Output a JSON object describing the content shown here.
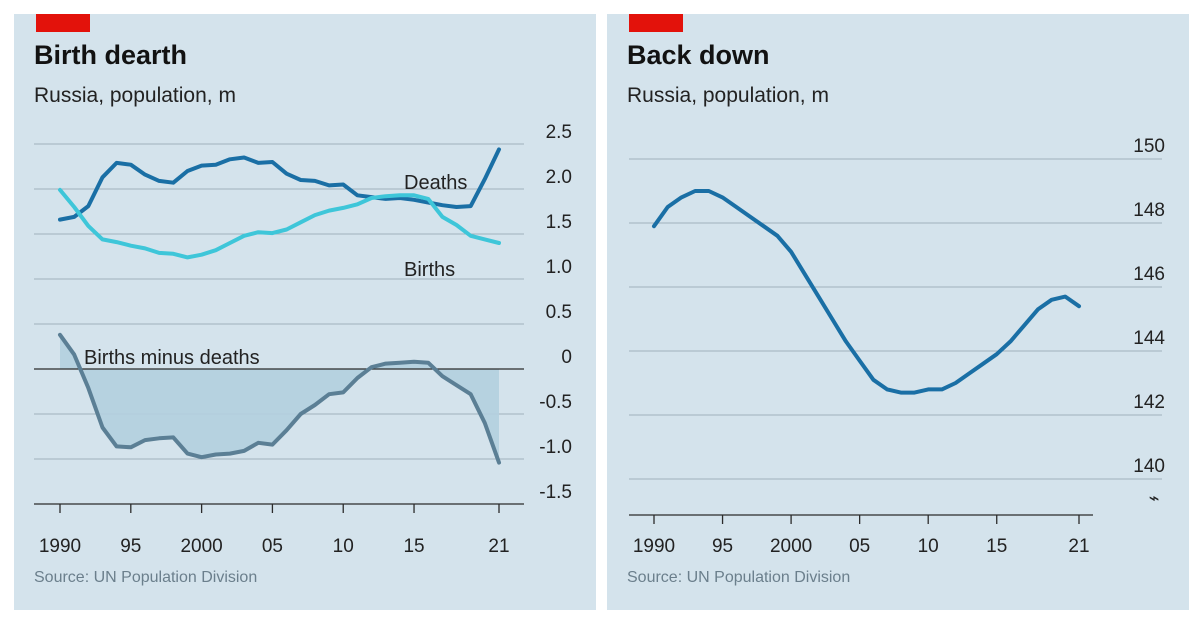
{
  "left": {
    "title": "Birth dearth",
    "subtitle": "Russia, population, m",
    "source": "Source: UN Population Division",
    "colors": {
      "deaths": "#1a6fa5",
      "births": "#3ec6d9",
      "net": "#5b7f95",
      "area": "#b3cfdf",
      "grid": "#9fb1bd",
      "axis": "#2b2b2b",
      "background": "#d4e3ec"
    }
  },
  "right": {
    "title": "Back down",
    "subtitle": "Russia, population, m",
    "source": "Source: UN Population Division",
    "axis_break_glyph": "⌁",
    "colors": {
      "line": "#1a6fa5",
      "grid": "#9fb1bd",
      "axis": "#2b2b2b"
    }
  },
  "chart_data": [
    {
      "type": "line",
      "title": "Birth dearth",
      "subtitle": "Russia, population, m",
      "xlim": [
        1990,
        2021
      ],
      "ylim": [
        -1.5,
        2.5
      ],
      "yticks": [
        2.5,
        2.0,
        1.5,
        1.0,
        0.5,
        0,
        -0.5,
        -1.0,
        -1.5
      ],
      "ytick_labels": [
        "2.5",
        "2.0",
        "1.5",
        "1.0",
        "0.5",
        "0",
        "-0.5",
        "-1.0",
        "-1.5"
      ],
      "xticks": [
        1990,
        1995,
        2000,
        2005,
        2010,
        2015,
        2021
      ],
      "xtick_labels": [
        "1990",
        "95",
        "2000",
        "05",
        "10",
        "15",
        "21"
      ],
      "x": [
        1990,
        1991,
        1992,
        1993,
        1994,
        1995,
        1996,
        1997,
        1998,
        1999,
        2000,
        2001,
        2002,
        2003,
        2004,
        2005,
        2006,
        2007,
        2008,
        2009,
        2010,
        2011,
        2012,
        2013,
        2014,
        2015,
        2016,
        2017,
        2018,
        2019,
        2020,
        2021
      ],
      "series": [
        {
          "name": "Deaths",
          "label": "Deaths",
          "values": [
            1.66,
            1.69,
            1.81,
            2.13,
            2.29,
            2.27,
            2.16,
            2.09,
            2.07,
            2.2,
            2.26,
            2.27,
            2.33,
            2.35,
            2.29,
            2.3,
            2.17,
            2.1,
            2.09,
            2.04,
            2.05,
            1.93,
            1.91,
            1.89,
            1.9,
            1.88,
            1.85,
            1.82,
            1.8,
            1.81,
            2.11,
            2.44
          ]
        },
        {
          "name": "Births",
          "label": "Births",
          "values": [
            1.99,
            1.8,
            1.59,
            1.44,
            1.41,
            1.37,
            1.34,
            1.29,
            1.28,
            1.24,
            1.27,
            1.32,
            1.4,
            1.48,
            1.52,
            1.51,
            1.55,
            1.63,
            1.71,
            1.76,
            1.79,
            1.83,
            1.9,
            1.92,
            1.93,
            1.93,
            1.89,
            1.69,
            1.6,
            1.48,
            1.44,
            1.4
          ]
        },
        {
          "name": "Births minus deaths",
          "label": "Births minus deaths",
          "values": [
            0.38,
            0.16,
            -0.21,
            -0.65,
            -0.86,
            -0.87,
            -0.79,
            -0.77,
            -0.76,
            -0.94,
            -0.98,
            -0.95,
            -0.94,
            -0.91,
            -0.82,
            -0.84,
            -0.68,
            -0.5,
            -0.4,
            -0.28,
            -0.26,
            -0.1,
            0.02,
            0.06,
            0.07,
            0.08,
            0.07,
            -0.08,
            -0.18,
            -0.28,
            -0.6,
            -1.04
          ]
        }
      ]
    },
    {
      "type": "line",
      "title": "Back down",
      "subtitle": "Russia, population, m",
      "xlim": [
        1990,
        2021
      ],
      "ylim": [
        139,
        150
      ],
      "yticks": [
        150,
        148,
        146,
        144,
        142,
        140
      ],
      "ytick_labels": [
        "150",
        "148",
        "146",
        "144",
        "142",
        "140"
      ],
      "xticks": [
        1990,
        1995,
        2000,
        2005,
        2010,
        2015,
        2021
      ],
      "xtick_labels": [
        "1990",
        "95",
        "2000",
        "05",
        "10",
        "15",
        "21"
      ],
      "x": [
        1990,
        1991,
        1992,
        1993,
        1994,
        1995,
        1996,
        1997,
        1998,
        1999,
        2000,
        2001,
        2002,
        2003,
        2004,
        2005,
        2006,
        2007,
        2008,
        2009,
        2010,
        2011,
        2012,
        2013,
        2014,
        2015,
        2016,
        2017,
        2018,
        2019,
        2020,
        2021
      ],
      "series": [
        {
          "name": "Population",
          "values": [
            147.9,
            148.5,
            148.8,
            149.0,
            149.0,
            148.8,
            148.5,
            148.2,
            147.9,
            147.6,
            147.1,
            146.4,
            145.7,
            145.0,
            144.3,
            143.7,
            143.1,
            142.8,
            142.7,
            142.7,
            142.8,
            142.8,
            143.0,
            143.3,
            143.6,
            143.9,
            144.3,
            144.8,
            145.3,
            145.6,
            145.7,
            145.4
          ]
        }
      ]
    }
  ]
}
